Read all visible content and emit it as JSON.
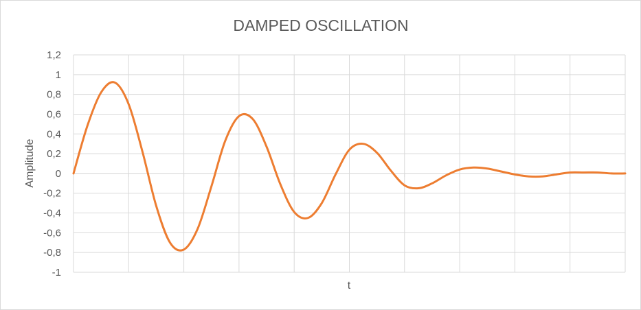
{
  "chart_data": {
    "type": "line",
    "title": "DAMPED OSCILLATION",
    "xlabel": "t",
    "ylabel": "Amplitude",
    "ylim": [
      -1,
      1.2
    ],
    "xlim": [
      0,
      10
    ],
    "y_ticks": [
      "1,2",
      "1",
      "0,8",
      "0,6",
      "0,4",
      "0,2",
      "0",
      "-0,2",
      "-0,4",
      "-0,6",
      "-0,8",
      "-1"
    ],
    "grid": true,
    "legend": "none",
    "line_color": "#ED7D31",
    "series": [
      {
        "x": [
          0,
          0.25,
          0.5,
          0.75,
          1.0,
          1.25,
          1.5,
          1.75,
          2.0,
          2.25,
          2.5,
          2.75,
          3.0,
          3.25,
          3.5,
          3.75,
          4.0,
          4.25,
          4.5,
          4.75,
          5.0,
          5.25,
          5.5,
          5.75,
          6.0,
          6.25,
          6.5,
          6.75,
          7.0,
          7.25,
          7.5,
          7.75,
          8.0,
          8.25,
          8.5,
          8.75,
          9.0,
          9.25,
          9.5,
          9.75,
          10.0
        ],
        "values": [
          0,
          0.48,
          0.82,
          0.92,
          0.7,
          0.22,
          -0.33,
          -0.7,
          -0.77,
          -0.56,
          -0.13,
          0.33,
          0.58,
          0.55,
          0.27,
          -0.11,
          -0.39,
          -0.45,
          -0.3,
          -0.01,
          0.24,
          0.3,
          0.21,
          0.03,
          -0.12,
          -0.15,
          -0.1,
          -0.02,
          0.04,
          0.06,
          0.05,
          0.02,
          -0.01,
          -0.03,
          -0.03,
          -0.01,
          0.01,
          0.01,
          0.01,
          0,
          0
        ]
      }
    ]
  }
}
